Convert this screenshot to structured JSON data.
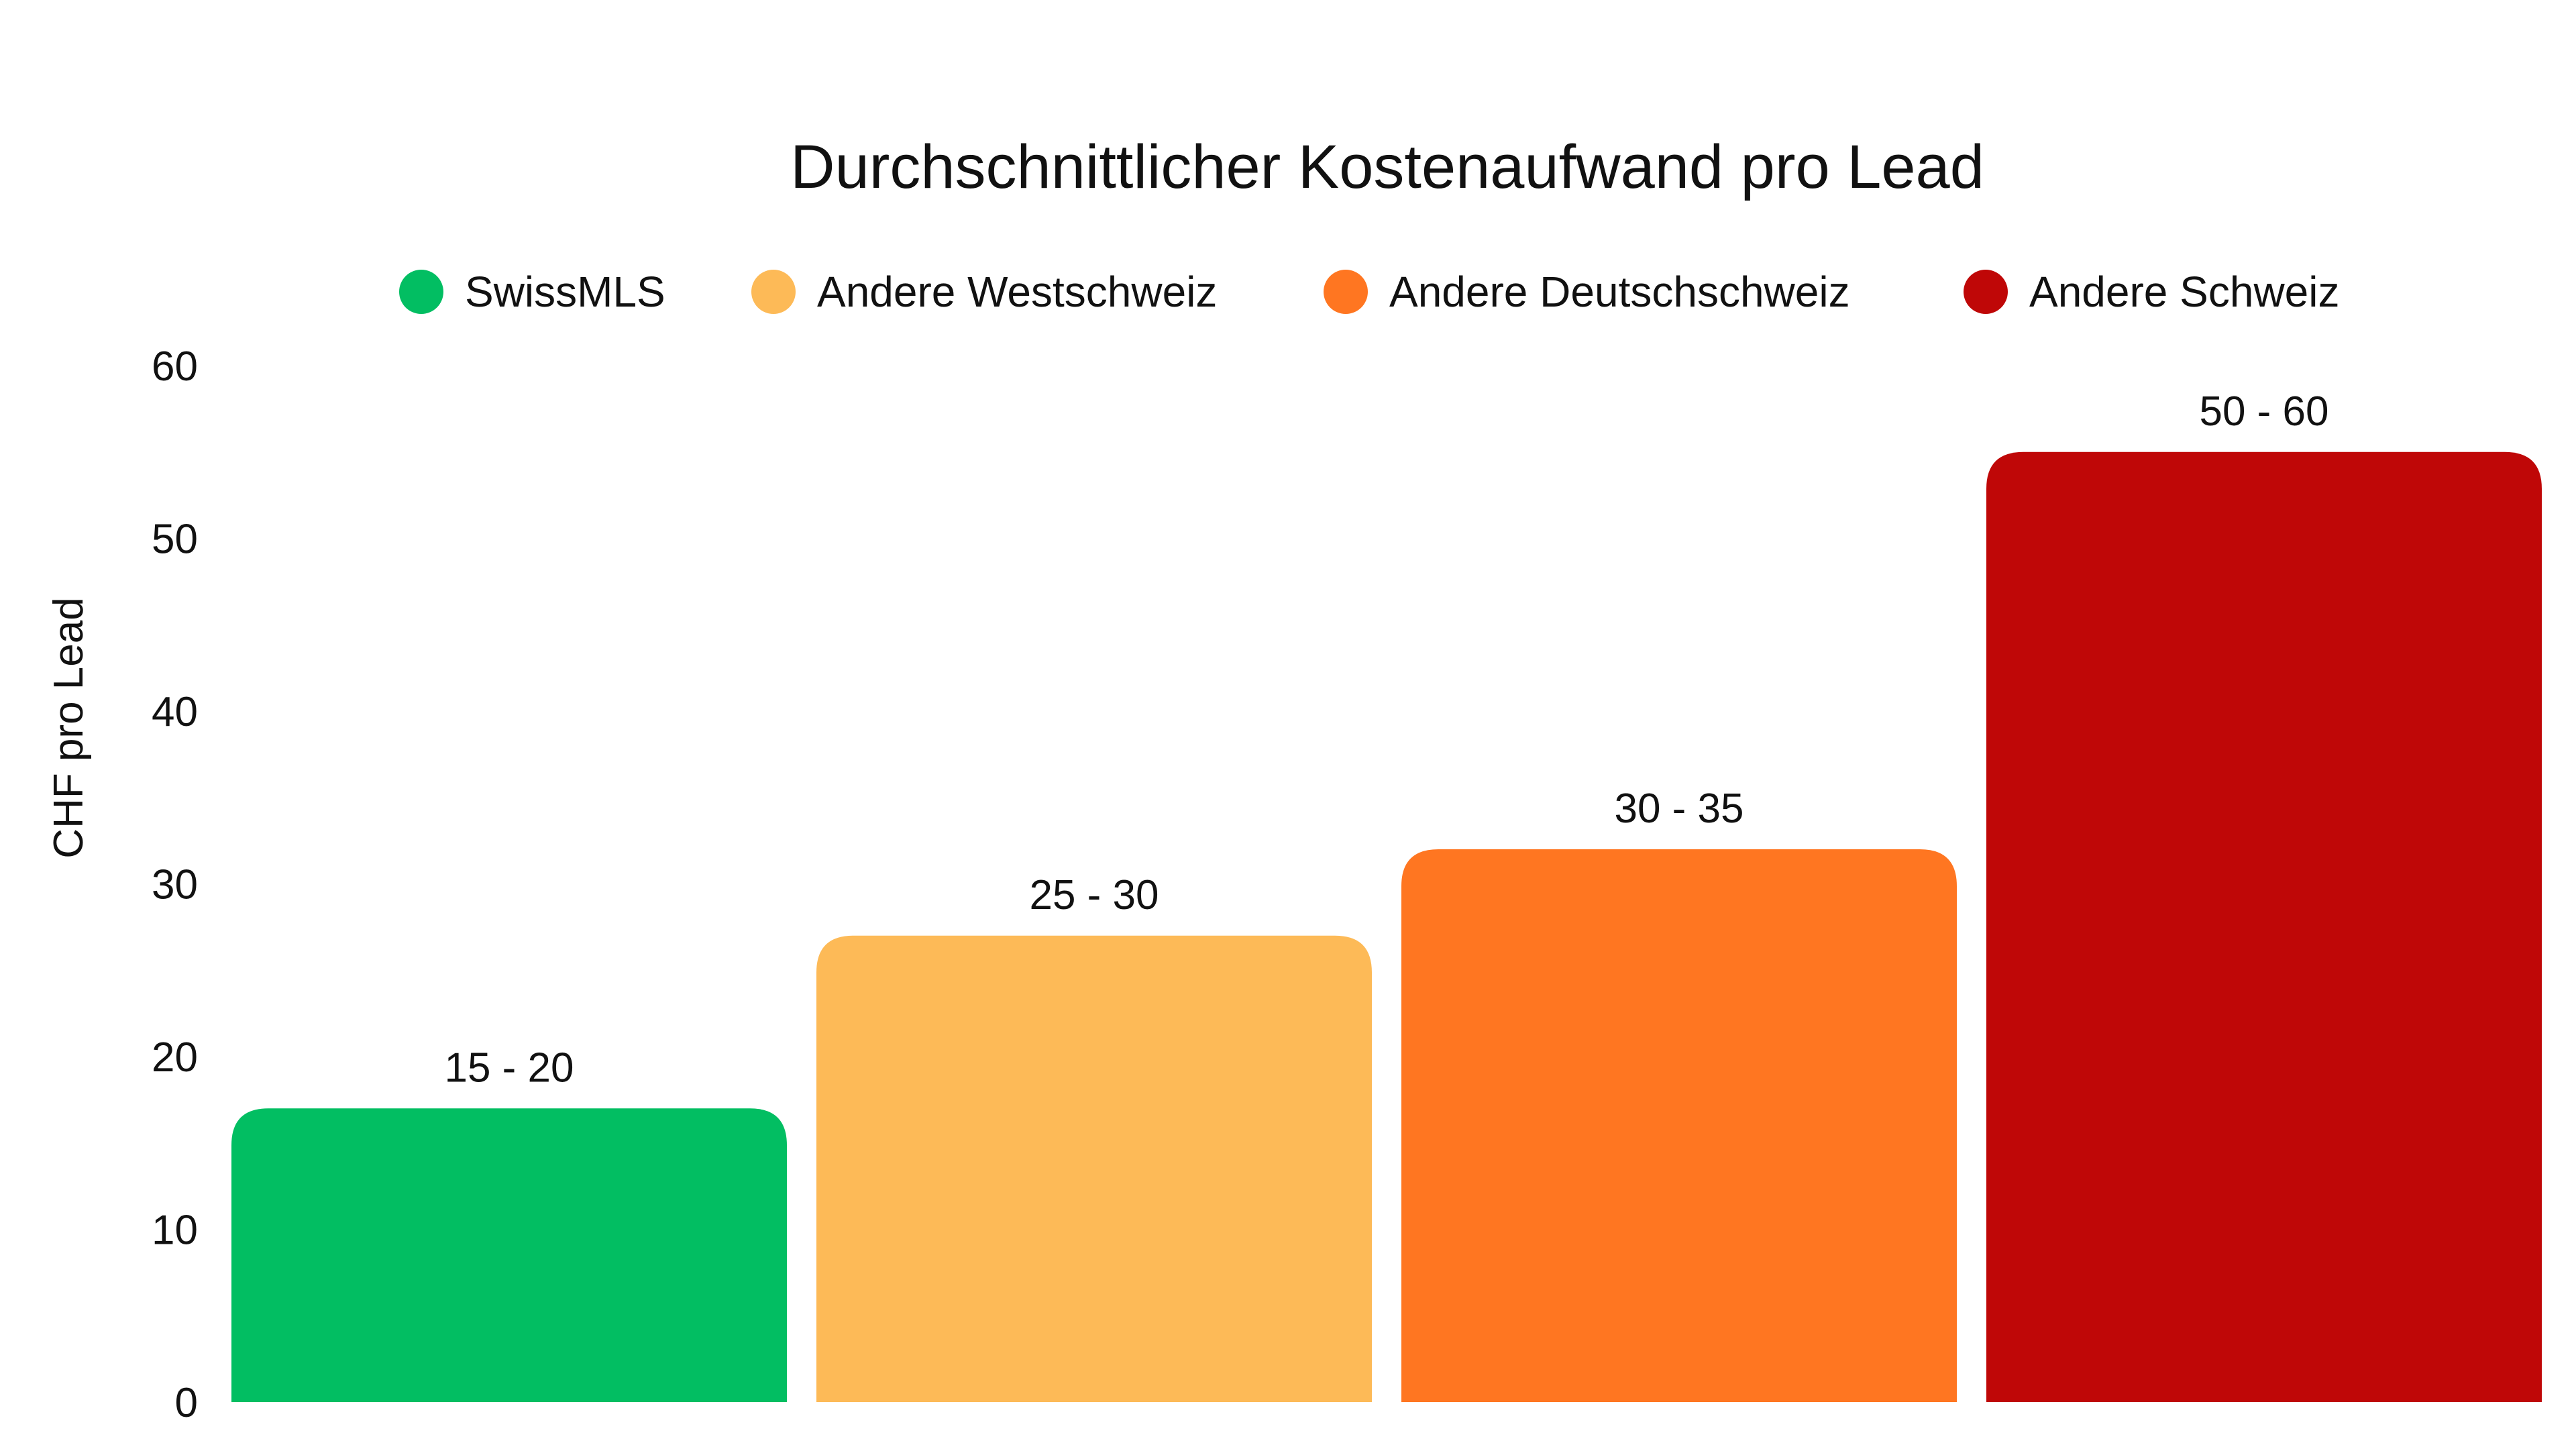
{
  "chart_data": {
    "type": "bar",
    "title": "Durchschnittlicher Kostenaufwand pro Lead",
    "ylabel": "CHF pro Lead",
    "xlabel": "",
    "ylim": [
      0,
      60
    ],
    "yticks": [
      0,
      10,
      20,
      30,
      40,
      50,
      60
    ],
    "grid": false,
    "legend_position": "top",
    "categories": [
      "SwissMLS",
      "Andere Westschweiz",
      "Andere Deutschschweiz",
      "Andere Schweiz"
    ],
    "values": [
      17,
      27,
      32,
      55
    ],
    "data_labels": [
      "15 - 20",
      "25 - 30",
      "30 - 35",
      "50 - 60"
    ],
    "colors": [
      "#02BE62",
      "#FDBA57",
      "#FF7621",
      "#BF0707"
    ]
  }
}
